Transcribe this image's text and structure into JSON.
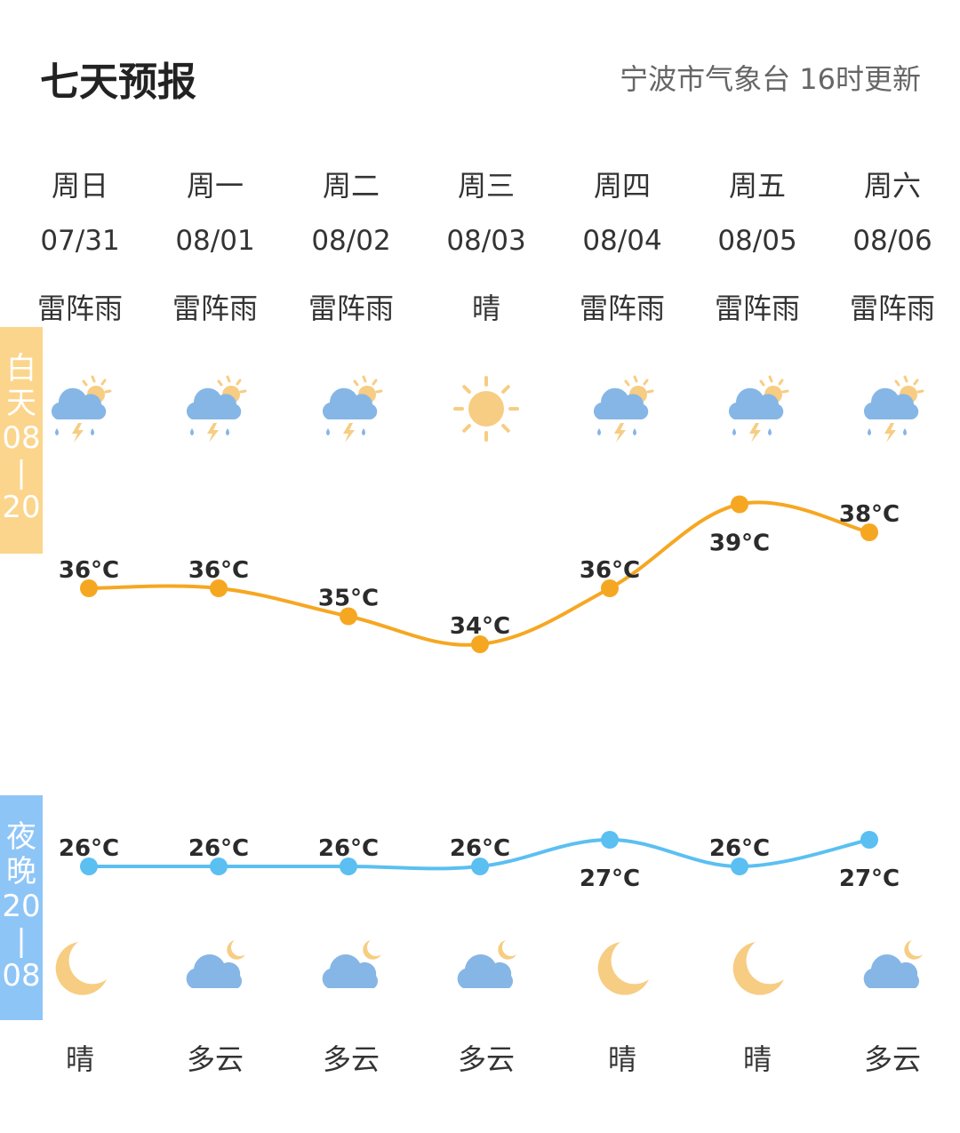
{
  "header": {
    "title": "七天预报",
    "source": "宁波市气象台 16时更新"
  },
  "bands": {
    "day": {
      "label": [
        "白",
        "天",
        "08",
        "|",
        "20"
      ],
      "color": "#fbd58c"
    },
    "night": {
      "label": [
        "夜",
        "晚",
        "20",
        "|",
        "08"
      ],
      "color": "#8ec5f7"
    }
  },
  "colors": {
    "day_line": "#f6a722",
    "night_line": "#5bbff2"
  },
  "days": [
    {
      "weekday": "周日",
      "date": "07/31",
      "day_weather": "雷阵雨",
      "day_icon": "thunder-shower-icon",
      "day_temp": "36°C",
      "night_temp": "26°C",
      "night_icon": "moon-icon",
      "night_weather": "晴"
    },
    {
      "weekday": "周一",
      "date": "08/01",
      "day_weather": "雷阵雨",
      "day_icon": "thunder-shower-icon",
      "day_temp": "36°C",
      "night_temp": "26°C",
      "night_icon": "cloudy-night-icon",
      "night_weather": "多云"
    },
    {
      "weekday": "周二",
      "date": "08/02",
      "day_weather": "雷阵雨",
      "day_icon": "thunder-shower-icon",
      "day_temp": "35°C",
      "night_temp": "26°C",
      "night_icon": "cloudy-night-icon",
      "night_weather": "多云"
    },
    {
      "weekday": "周三",
      "date": "08/03",
      "day_weather": "晴",
      "day_icon": "sun-icon",
      "day_temp": "34°C",
      "night_temp": "26°C",
      "night_icon": "cloudy-night-icon",
      "night_weather": "多云"
    },
    {
      "weekday": "周四",
      "date": "08/04",
      "day_weather": "雷阵雨",
      "day_icon": "thunder-shower-icon",
      "day_temp": "36°C",
      "night_temp": "27°C",
      "night_icon": "moon-icon",
      "night_weather": "晴"
    },
    {
      "weekday": "周五",
      "date": "08/05",
      "day_weather": "雷阵雨",
      "day_icon": "thunder-shower-icon",
      "day_temp": "39°C",
      "night_temp": "26°C",
      "night_icon": "moon-icon",
      "night_weather": "晴"
    },
    {
      "weekday": "周六",
      "date": "08/06",
      "day_weather": "雷阵雨",
      "day_icon": "thunder-shower-icon",
      "day_temp": "38°C",
      "night_temp": "27°C",
      "night_icon": "cloudy-night-icon",
      "night_weather": "多云"
    }
  ],
  "chart_data": {
    "type": "line",
    "categories": [
      "07/31",
      "08/01",
      "08/02",
      "08/03",
      "08/04",
      "08/05",
      "08/06"
    ],
    "series": [
      {
        "values": [
          36,
          36,
          35,
          34,
          36,
          39,
          38
        ]
      },
      {
        "values": [
          26,
          26,
          26,
          26,
          27,
          26,
          27
        ]
      }
    ],
    "unit": "°C"
  }
}
